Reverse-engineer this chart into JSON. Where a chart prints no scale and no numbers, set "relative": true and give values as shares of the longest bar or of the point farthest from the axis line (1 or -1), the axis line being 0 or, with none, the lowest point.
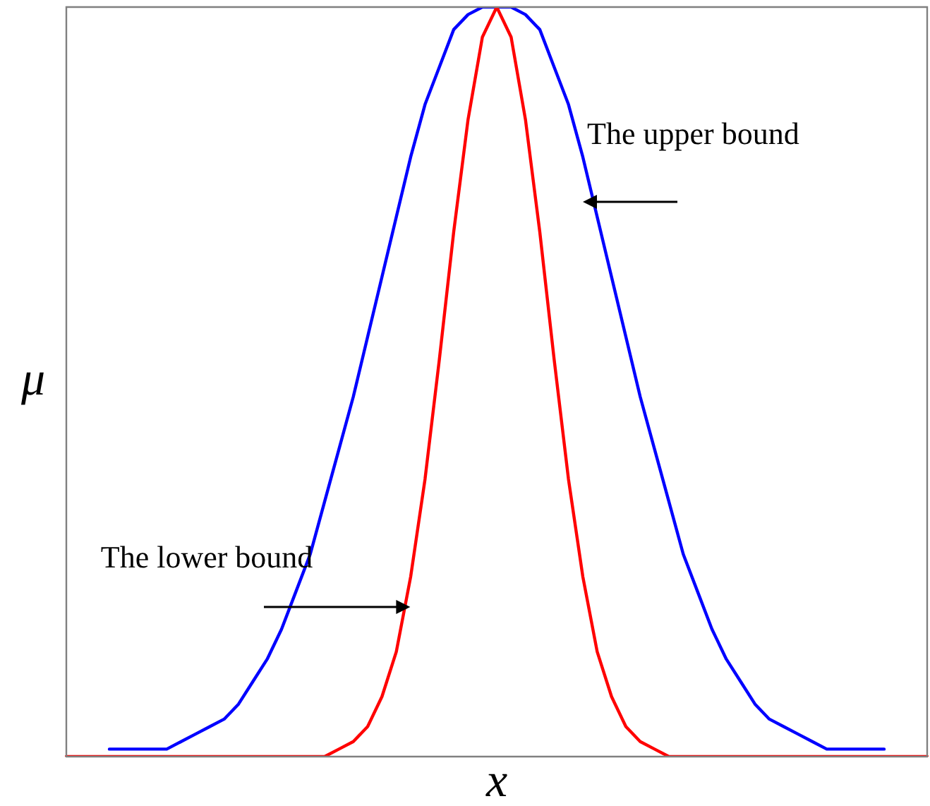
{
  "chart_data": {
    "type": "line",
    "relative": true,
    "xlabel": "x",
    "ylabel": "μ",
    "categories": [
      null,
      null,
      null,
      null,
      null,
      null,
      null,
      null,
      null,
      null,
      null,
      null,
      null,
      null,
      null,
      null,
      null,
      null,
      null,
      null,
      null,
      null,
      null,
      null,
      null,
      null,
      null,
      null,
      null,
      null,
      null,
      null,
      null,
      null,
      null,
      null,
      null,
      null,
      null,
      null,
      null,
      null,
      null,
      null,
      null,
      null,
      null,
      null,
      null,
      null,
      null,
      null,
      null,
      null,
      null,
      null,
      null,
      null,
      null,
      null,
      null
    ],
    "series": [
      {
        "color": "#0000ff",
        "values": [
          null,
          null,
          null,
          0.01,
          0.01,
          0.01,
          0.01,
          0.01,
          0.02,
          0.03,
          0.04,
          0.05,
          0.07,
          0.1,
          0.13,
          0.17,
          0.22,
          0.27,
          0.34,
          0.41,
          0.48,
          0.56,
          0.64,
          0.72,
          0.8,
          0.87,
          0.92,
          0.97,
          0.99,
          1,
          1,
          1,
          0.99,
          0.97,
          0.92,
          0.87,
          0.8,
          0.72,
          0.64,
          0.56,
          0.48,
          0.41,
          0.34,
          0.27,
          0.22,
          0.17,
          0.13,
          0.1,
          0.07,
          0.05,
          0.04,
          0.03,
          0.02,
          0.01,
          0.01,
          0.01,
          0.01,
          0.01,
          null,
          null,
          null
        ]
      },
      {
        "color": "#ff0000",
        "values": [
          0,
          0,
          0,
          0,
          0,
          0,
          0,
          0,
          0,
          0,
          0,
          0,
          0,
          0,
          0,
          0,
          0,
          0,
          0,
          0.01,
          0.02,
          0.04,
          0.08,
          0.14,
          0.24,
          0.37,
          0.53,
          0.7,
          0.85,
          0.96,
          1,
          0.96,
          0.85,
          0.7,
          0.53,
          0.37,
          0.24,
          0.14,
          0.08,
          0.04,
          0.02,
          0.01,
          0,
          0,
          0,
          0,
          0,
          0,
          0,
          0,
          0,
          0,
          0,
          0,
          0,
          0,
          0,
          0,
          0,
          0,
          0
        ]
      }
    ],
    "annotations": [
      "The upper bound",
      "The lower bound"
    ]
  }
}
